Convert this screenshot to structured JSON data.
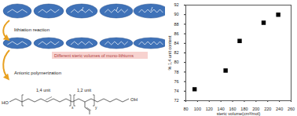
{
  "diagram": {
    "step1": "lithiation reaction",
    "note": "Different steric volumes of mono-lithiums",
    "step2": "Anionic polymerization",
    "structure": {
      "left_end": "HO",
      "right_end": "OH",
      "unit_a": "1,4 unit",
      "unit_b": "1,2 unit",
      "sub_a": "x",
      "sub_b": "y"
    }
  },
  "chart_data": {
    "type": "scatter",
    "x_label": "steric volume(cm³/mol)",
    "y_label": "% 1,4 unit content",
    "x": [
      95,
      148,
      172,
      213,
      238
    ],
    "values": [
      74.4,
      78.3,
      84.5,
      88.3,
      90.0
    ],
    "color": "#000000",
    "marker": "square",
    "xlim": [
      80,
      260
    ],
    "xticks": [
      80,
      100,
      120,
      140,
      160,
      180,
      200,
      220,
      240,
      260
    ],
    "ylim": [
      72,
      92
    ],
    "yticks": [
      72,
      74,
      76,
      78,
      80,
      82,
      84,
      86,
      88,
      90,
      92
    ],
    "grid": false
  }
}
